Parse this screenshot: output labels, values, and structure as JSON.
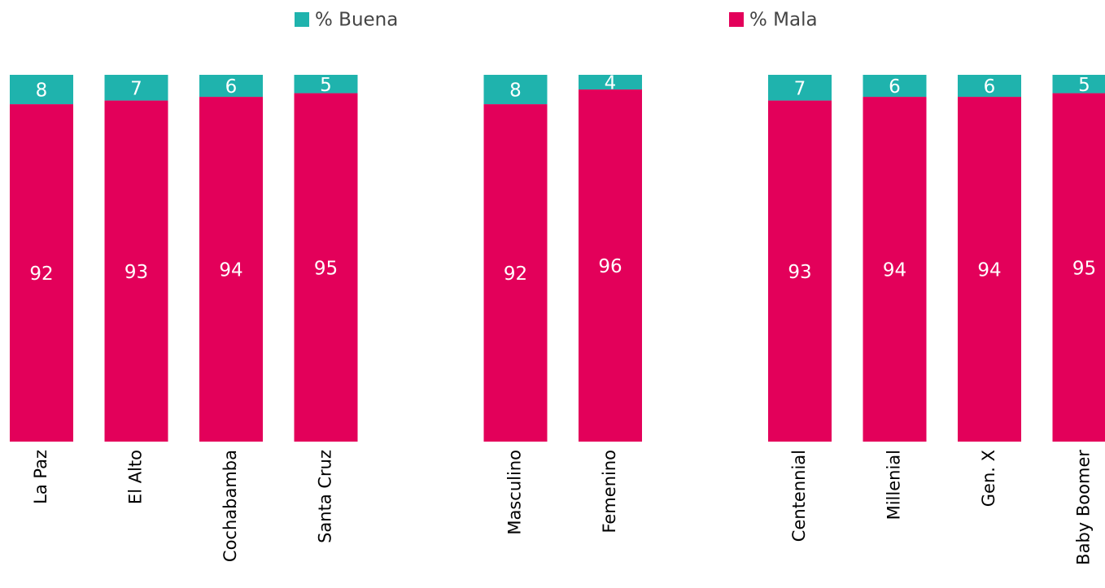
{
  "chart_data": {
    "type": "stacked_bar",
    "categories": [
      "La Paz",
      "El Alto",
      "Cochabamba",
      "Santa Cruz",
      null,
      "Masculino",
      "Femenino",
      null,
      "Centennial",
      "Millenial",
      "Gen. X",
      "Baby Boomer"
    ],
    "series": [
      {
        "name": "% Mala",
        "color": "#e3005a",
        "values": [
          92,
          93,
          94,
          95,
          null,
          92,
          96,
          null,
          93,
          94,
          94,
          95
        ]
      },
      {
        "name": "% Buena",
        "color": "#1fb3ad",
        "values": [
          8,
          7,
          6,
          5,
          null,
          8,
          4,
          null,
          7,
          6,
          6,
          5
        ]
      }
    ],
    "ylim": [
      0,
      100
    ]
  }
}
